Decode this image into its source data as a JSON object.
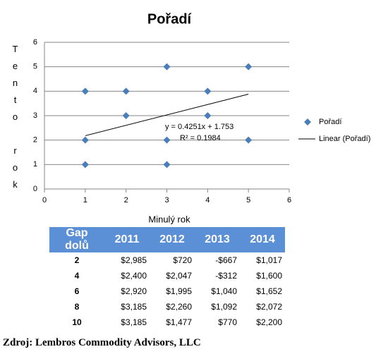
{
  "chart_data": {
    "type": "scatter",
    "title": "Pořadí",
    "x_label": "Minulý rok",
    "y_label": "Tento rok",
    "series": [
      {
        "name": "Pořadí",
        "type": "scatter",
        "color": "#4a7ebb",
        "x": [
          1,
          2,
          3,
          5,
          4,
          2,
          4,
          1,
          3,
          5,
          1,
          3
        ],
        "values": [
          4,
          4,
          5,
          5,
          4,
          3,
          3,
          2,
          2,
          2,
          1,
          1
        ]
      },
      {
        "name": "Linear (Pořadí)",
        "type": "line",
        "color": "#000000",
        "x": [
          1,
          5
        ],
        "values": [
          2.18,
          3.88
        ]
      }
    ],
    "annotations": [
      "y = 0.4251x + 1.753",
      "R² = 0.1984"
    ],
    "xlim": [
      0,
      6
    ],
    "ylim": [
      0,
      6
    ],
    "xticks": [
      0,
      1,
      2,
      3,
      4,
      5,
      6
    ],
    "yticks": [
      0,
      1,
      2,
      3,
      4,
      5,
      6
    ],
    "grid": true,
    "legend": "right"
  },
  "table": {
    "header": [
      "Gap dolů",
      "2011",
      "2012",
      "2013",
      "2014"
    ],
    "rows": [
      [
        "2",
        "$2,985",
        "$720",
        "-$667",
        "$1,017"
      ],
      [
        "4",
        "$2,400",
        "$2,047",
        "-$312",
        "$1,600"
      ],
      [
        "6",
        "$2,920",
        "$1,995",
        "$1,040",
        "$1,652"
      ],
      [
        "8",
        "$3,185",
        "$2,260",
        "$1,092",
        "$2,072"
      ],
      [
        "10",
        "$3,185",
        "$1,477",
        "$770",
        "$2,200"
      ]
    ]
  },
  "source": "Zdroj: Lembros Commodity Advisors, LLC"
}
